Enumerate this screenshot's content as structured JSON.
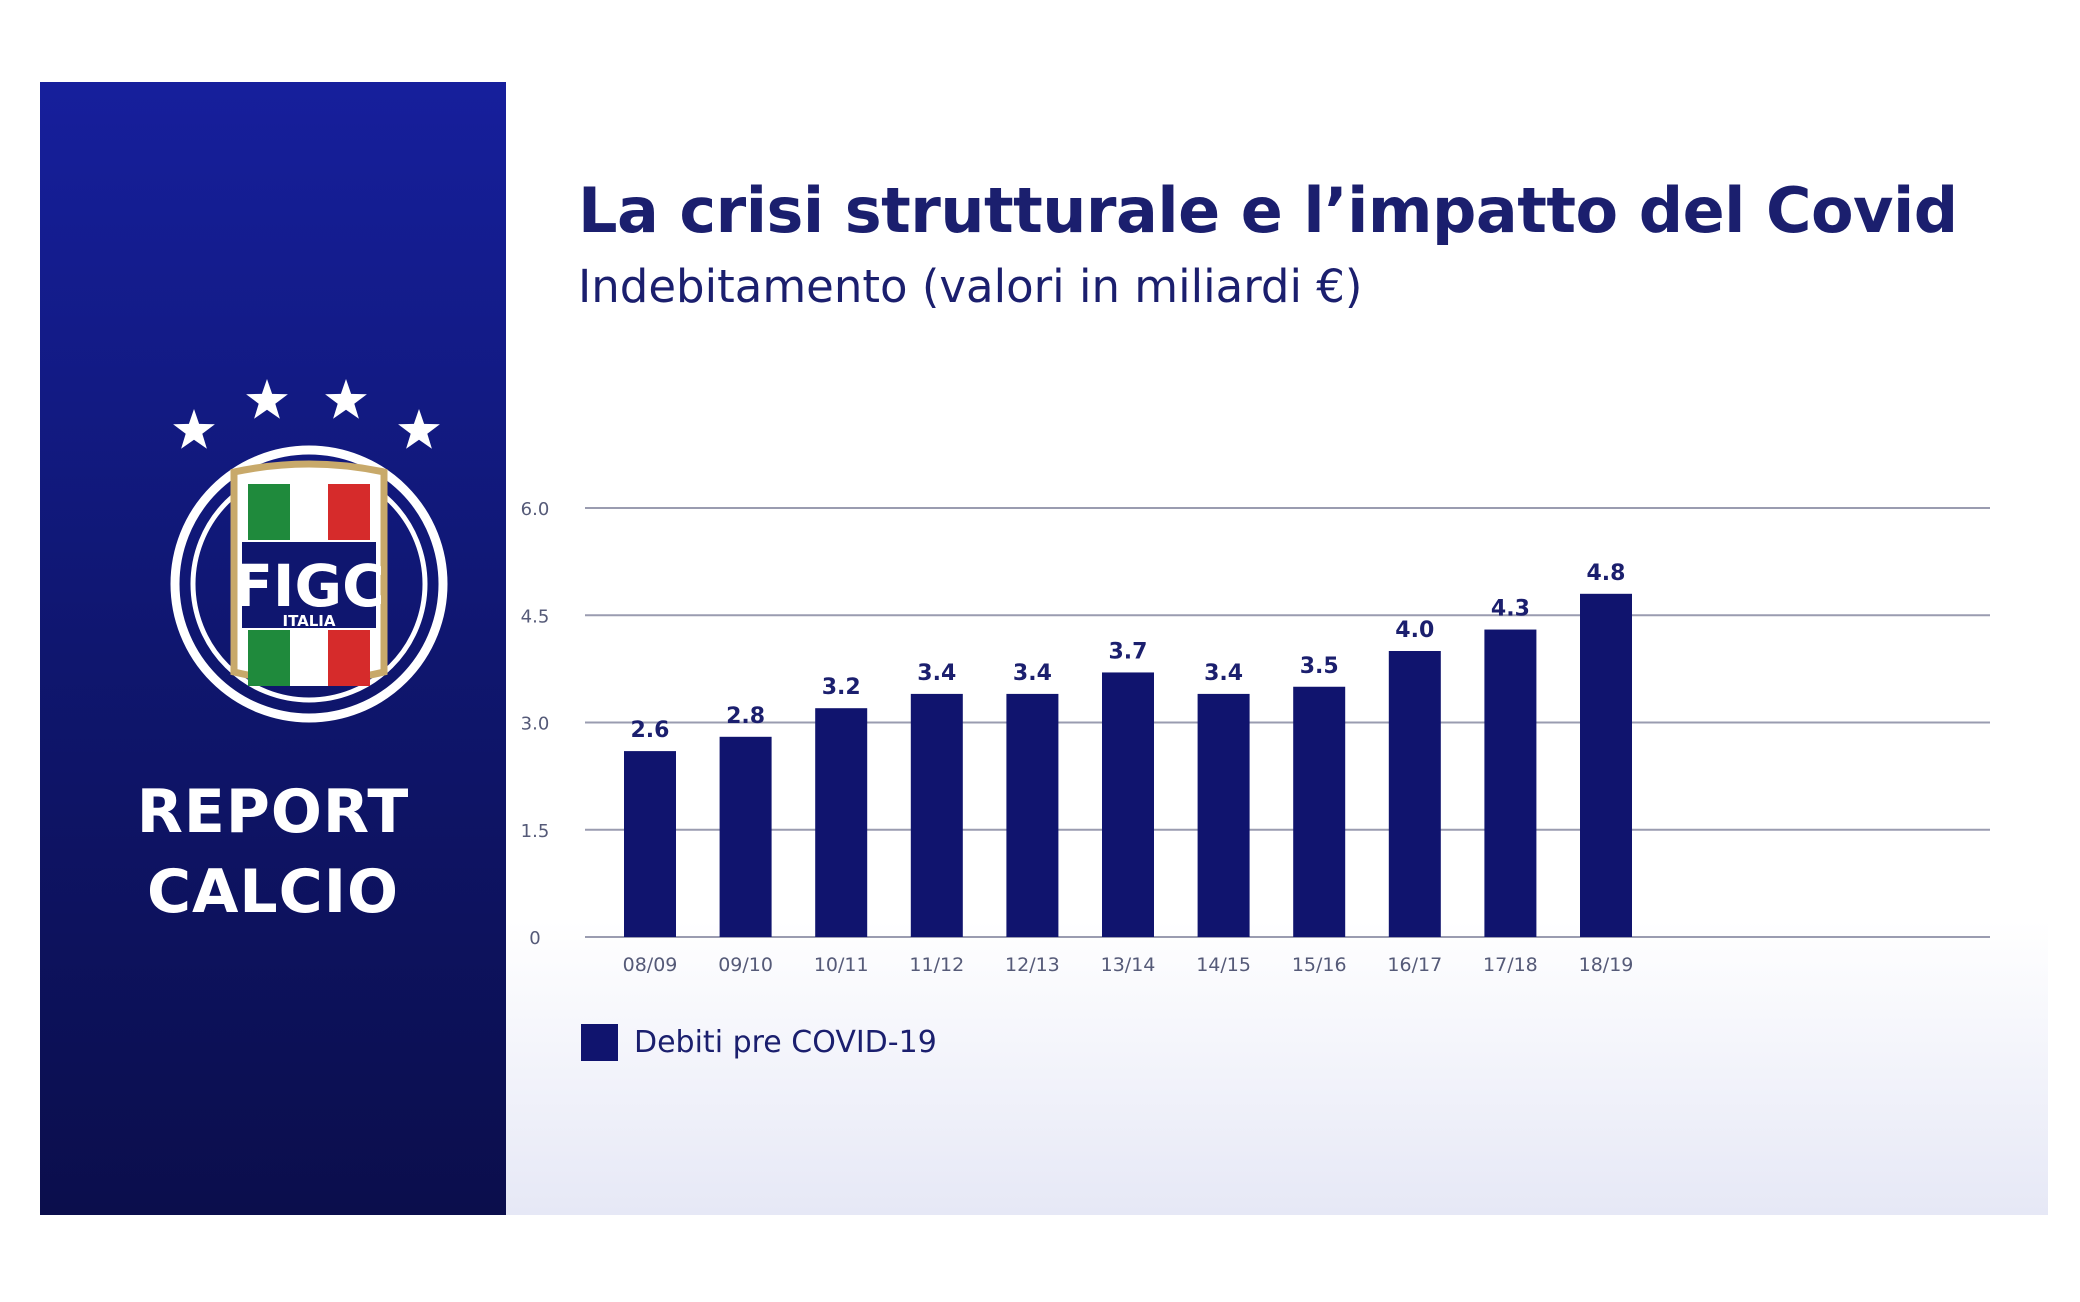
{
  "brand": {
    "logo_text": "FIGC",
    "logo_subtext": "ITALIA",
    "report_line1": "REPORT",
    "report_line2": "CALCIO"
  },
  "colors": {
    "panel_top": "#161f9c",
    "panel_bottom": "#0b0e4c",
    "bar": "#10146e",
    "text": "#1b1f6e",
    "grid": "#9a9cb0",
    "axis_text": "#555a78",
    "gold": "#c8a96a",
    "flag_green": "#1f8a3c",
    "flag_red": "#d62b2b"
  },
  "icons": [
    "star-icon",
    "figc-shield-icon"
  ],
  "chart_data": {
    "type": "bar",
    "title": "La crisi strutturale e l’impatto del Covid",
    "subtitle": "Indebitamento (valori in miliardi €)",
    "categories": [
      "08/09",
      "09/10",
      "10/11",
      "11/12",
      "12/13",
      "13/14",
      "14/15",
      "15/16",
      "16/17",
      "17/18",
      "18/19"
    ],
    "series": [
      {
        "name": "Debiti pre COVID-19",
        "values": [
          2.6,
          2.8,
          3.2,
          3.4,
          3.4,
          3.7,
          3.4,
          3.5,
          4.0,
          4.3,
          4.8
        ],
        "labels": [
          "2.6",
          "2.8",
          "3.2",
          "3.4",
          "3.4",
          "3.7",
          "3.4",
          "3.5",
          "4.0",
          "4.3",
          "4.8"
        ]
      }
    ],
    "ylim": [
      0,
      6
    ],
    "yticks": [
      0,
      1.5,
      3,
      4.5,
      6
    ],
    "ytick_labels": [
      "0",
      "1.5",
      "3.0",
      "4.5",
      "6.0"
    ],
    "grid": true,
    "legend_position": "bottom-left",
    "xlabel": "",
    "ylabel": ""
  }
}
